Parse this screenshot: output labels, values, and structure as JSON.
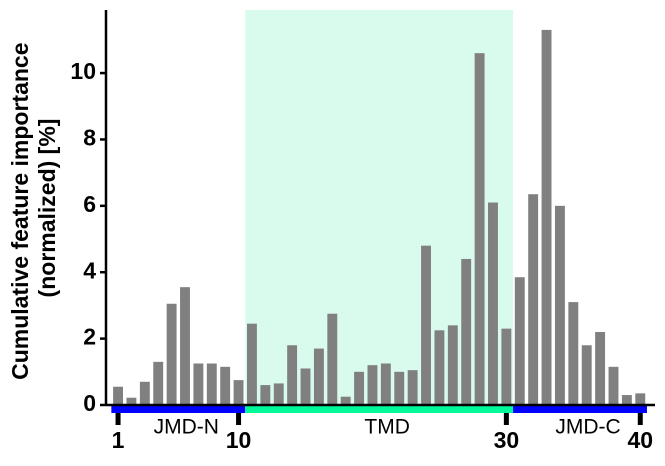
{
  "chart_data": {
    "type": "bar",
    "ylabel": [
      "Cumulative feature importance",
      "(normalized) [%]"
    ],
    "x": [
      1,
      2,
      3,
      4,
      5,
      6,
      7,
      8,
      9,
      10,
      11,
      12,
      13,
      14,
      15,
      16,
      17,
      18,
      19,
      20,
      21,
      22,
      23,
      24,
      25,
      26,
      27,
      28,
      29,
      30,
      31,
      32,
      33,
      34,
      35,
      36,
      37,
      38,
      39,
      40
    ],
    "values": [
      0.55,
      0.22,
      0.7,
      1.3,
      3.05,
      3.55,
      1.25,
      1.25,
      1.15,
      0.75,
      2.45,
      0.6,
      0.65,
      1.8,
      1.1,
      1.7,
      2.75,
      0.25,
      1.0,
      1.2,
      1.25,
      1.0,
      1.05,
      4.8,
      2.25,
      2.4,
      4.4,
      10.6,
      6.1,
      2.3,
      3.85,
      6.35,
      11.3,
      6.0,
      3.1,
      1.8,
      2.2,
      1.15,
      0.3,
      0.35
    ],
    "color": "#808080",
    "xlim": [
      0.1,
      41.1
    ],
    "xticks": [
      1,
      10,
      30,
      40
    ],
    "ylim": [
      0,
      11.9
    ],
    "yticks": [
      0,
      2,
      4,
      6,
      8,
      10
    ],
    "regions": [
      {
        "label": "JMD-N",
        "start": 0.5,
        "end": 10.5,
        "color": "#0000ff"
      },
      {
        "label": "TMD",
        "start": 10.5,
        "end": 30.5,
        "color": "#00fa9a",
        "shade": "#d9fbee"
      },
      {
        "label": "JMD-C",
        "start": 30.5,
        "end": 40.5,
        "color": "#0000ff"
      }
    ]
  }
}
